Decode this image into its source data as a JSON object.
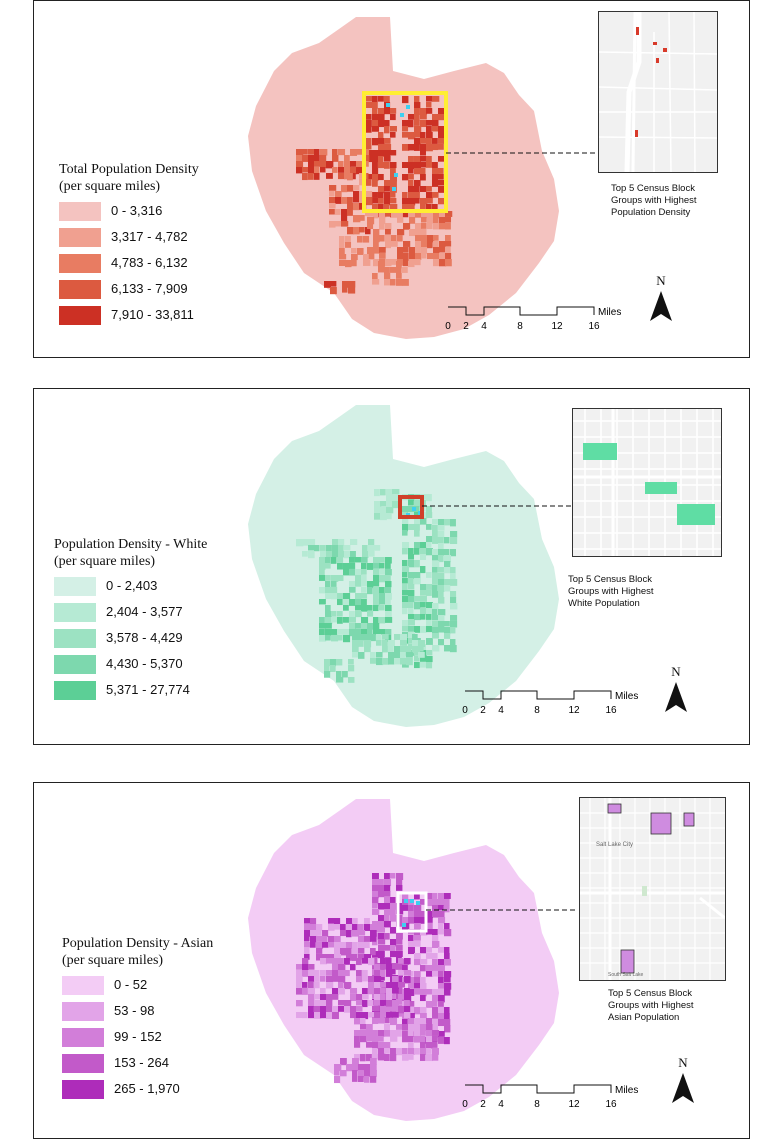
{
  "colors": {
    "panel1": {
      "base": "#f4c3c0",
      "classes": [
        "#f4c3c0",
        "#f0a090",
        "#e87c62",
        "#dc5a40",
        "#cc3024"
      ],
      "highlight": "#ffee33",
      "marker": "#3ed0f0"
    },
    "panel2": {
      "base": "#d4f0e6",
      "classes": [
        "#d4f0e6",
        "#b6ead4",
        "#9ce2c2",
        "#7dd8ae",
        "#5ccf96"
      ],
      "highlight": "#d0402a",
      "marker": "#3ed0f0"
    },
    "panel3": {
      "base": "#f3ccf5",
      "classes": [
        "#f3ccf5",
        "#e2a4e8",
        "#d27ed9",
        "#c25ac9",
        "#ae2cba"
      ],
      "highlight": "#ffffff",
      "marker": "#3ed0f0"
    }
  },
  "panels": [
    {
      "legend": {
        "title_line1": "Total Population Density",
        "title_line2": "(per square miles)",
        "items": [
          "0 - 3,316",
          "3,317 - 4,782",
          "4,783 - 6,132",
          "6,133 - 7,909",
          "7,910 - 33,811"
        ]
      },
      "inset": {
        "caption_line1": "Top 5 Census Block",
        "caption_line2": "Groups with Highest",
        "caption_line3": "Population Density"
      },
      "scalebar": {
        "ticks": [
          "0",
          "2",
          "4",
          "8",
          "12",
          "16"
        ],
        "unit": "Miles"
      },
      "north": "N"
    },
    {
      "legend": {
        "title_line1": "Population Density - White",
        "title_line2": "(per square miles)",
        "items": [
          "0 - 2,403",
          "2,404 - 3,577",
          "3,578 - 4,429",
          "4,430 - 5,370",
          "5,371 - 27,774"
        ]
      },
      "inset": {
        "caption_line1": "Top 5 Census Block",
        "caption_line2": "Groups with Highest",
        "caption_line3": "White Population"
      },
      "scalebar": {
        "ticks": [
          "0",
          "2",
          "4",
          "8",
          "12",
          "16"
        ],
        "unit": "Miles"
      },
      "north": "N"
    },
    {
      "legend": {
        "title_line1": "Population Density - Asian",
        "title_line2": "(per square miles)",
        "items": [
          "0 - 52",
          "53 - 98",
          "99 - 152",
          "153 - 264",
          "265 - 1,970"
        ]
      },
      "inset": {
        "caption_line1": "Top 5 Census Block",
        "caption_line2": "Groups with Highest",
        "caption_line3": "Asian Population",
        "labels": [
          "Salt Lake City",
          "South Salt Lake"
        ]
      },
      "scalebar": {
        "ticks": [
          "0",
          "2",
          "4",
          "8",
          "12",
          "16"
        ],
        "unit": "Miles"
      },
      "north": "N"
    }
  ]
}
